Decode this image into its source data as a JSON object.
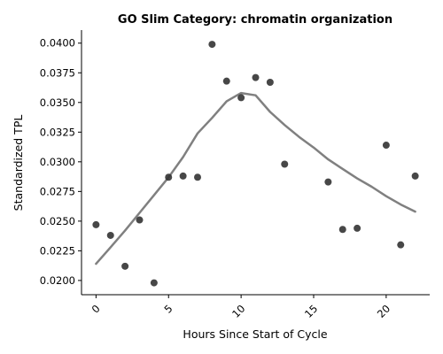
{
  "chart_data": {
    "type": "scatter",
    "title": "GO Slim Category: chromatin organization",
    "xlabel": "Hours Since Start of Cycle",
    "ylabel": "Standardized TPL",
    "xlim": [
      -1,
      23
    ],
    "ylim": [
      0.0188,
      0.0411
    ],
    "xticks": [
      0,
      5,
      10,
      15,
      20
    ],
    "yticks": [
      0.02,
      0.0225,
      0.025,
      0.0275,
      0.03,
      0.0325,
      0.035,
      0.0375,
      0.04
    ],
    "ytick_labels": [
      "0.0200",
      "0.0225",
      "0.0250",
      "0.0275",
      "0.0300",
      "0.0325",
      "0.0350",
      "0.0375",
      "0.0400"
    ],
    "grid": false,
    "legend": false,
    "series": [
      {
        "type": "scatter",
        "color": "#333333",
        "x": [
          0,
          1,
          2,
          3,
          4,
          5,
          6,
          7,
          8,
          9,
          10,
          11,
          12,
          13,
          16,
          17,
          18,
          20,
          21,
          22
        ],
        "y": [
          0.0247,
          0.0238,
          0.0212,
          0.0251,
          0.0198,
          0.0287,
          0.0288,
          0.0287,
          0.0399,
          0.0368,
          0.0354,
          0.0371,
          0.0367,
          0.0298,
          0.0283,
          0.0243,
          0.0244,
          0.0314,
          0.023,
          0.0288
        ]
      },
      {
        "type": "line",
        "color": "#808080",
        "x": [
          0,
          1,
          2,
          3,
          4,
          5,
          6,
          7,
          8,
          9,
          10,
          11,
          12,
          13,
          14,
          15,
          16,
          17,
          18,
          19,
          20,
          21,
          22
        ],
        "y": [
          0.0214,
          0.0228,
          0.0242,
          0.0257,
          0.0272,
          0.0287,
          0.0304,
          0.0324,
          0.0337,
          0.0351,
          0.0358,
          0.0356,
          0.0342,
          0.0331,
          0.0321,
          0.0312,
          0.0302,
          0.0294,
          0.0286,
          0.0279,
          0.0271,
          0.0264,
          0.0258
        ]
      }
    ]
  }
}
